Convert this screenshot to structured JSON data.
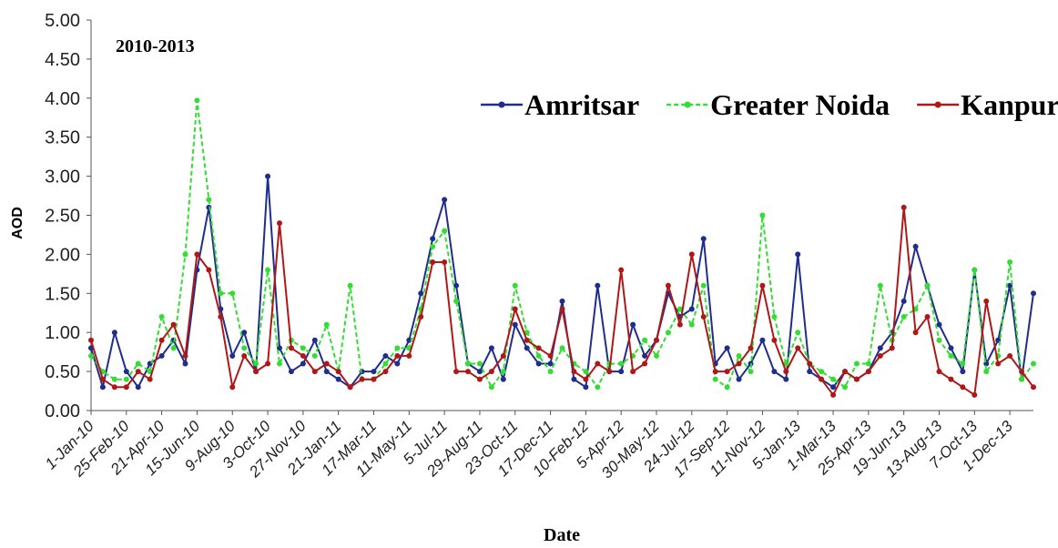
{
  "chart_data": {
    "type": "line",
    "title": "2010-2013",
    "x_label": "Date",
    "y_label": "AOD",
    "categories": [
      "1-Jan-10",
      null,
      null,
      "25-Feb-10",
      null,
      null,
      "21-Apr-10",
      null,
      null,
      "15-Jun-10",
      null,
      null,
      "9-Aug-10",
      null,
      null,
      "3-Oct-10",
      null,
      null,
      "27-Nov-10",
      null,
      null,
      "21-Jan-11",
      null,
      null,
      "17-Mar-11",
      null,
      null,
      "11-May-11",
      null,
      null,
      "5-Jul-11",
      null,
      null,
      "29-Aug-11",
      null,
      null,
      "23-Oct-11",
      null,
      null,
      "17-Dec-11",
      null,
      null,
      "10-Feb-12",
      null,
      null,
      "5-Apr-12",
      null,
      null,
      "30-May-12",
      null,
      null,
      "24-Jul-12",
      null,
      null,
      "17-Sep-12",
      null,
      null,
      "11-Nov-12",
      null,
      null,
      "5-Jan-13",
      null,
      null,
      "1-Mar-13",
      null,
      null,
      "25-Apr-13",
      null,
      null,
      "19-Jun-13",
      null,
      null,
      "13-Aug-13",
      null,
      null,
      "7-Oct-13",
      null,
      null,
      "1-Dec-13",
      null,
      null
    ],
    "series": [
      {
        "name": "Amritsar",
        "color": "#1f2d8c",
        "dashed": false,
        "values": [
          0.8,
          0.3,
          1.0,
          0.5,
          0.3,
          0.6,
          0.7,
          0.9,
          0.6,
          1.8,
          2.6,
          1.3,
          0.7,
          1.0,
          0.5,
          3.0,
          0.8,
          0.5,
          0.6,
          0.9,
          0.5,
          0.4,
          0.3,
          0.5,
          0.5,
          0.7,
          0.6,
          0.9,
          1.5,
          2.2,
          2.7,
          1.6,
          0.6,
          0.5,
          0.8,
          0.4,
          1.1,
          0.8,
          0.6,
          0.6,
          1.4,
          0.4,
          0.3,
          1.6,
          0.5,
          0.5,
          1.1,
          0.7,
          0.9,
          1.5,
          1.2,
          1.3,
          2.2,
          0.6,
          0.8,
          0.4,
          0.6,
          0.9,
          0.5,
          0.4,
          2.0,
          0.5,
          0.4,
          0.3,
          0.5,
          0.4,
          0.5,
          0.8,
          1.0,
          1.4,
          2.1,
          1.6,
          1.1,
          0.8,
          0.5,
          1.8,
          0.6,
          0.9,
          1.6,
          0.4,
          1.5
        ]
      },
      {
        "name": "Greater Noida",
        "color": "#33dd33",
        "dashed": true,
        "values": [
          0.7,
          0.5,
          0.4,
          0.4,
          0.6,
          0.5,
          1.2,
          0.8,
          2.0,
          3.97,
          2.7,
          1.5,
          1.5,
          0.8,
          0.6,
          1.8,
          0.6,
          0.9,
          0.8,
          0.7,
          1.1,
          0.5,
          1.6,
          0.4,
          0.4,
          0.6,
          0.8,
          0.8,
          1.3,
          2.1,
          2.3,
          1.4,
          0.6,
          0.6,
          0.3,
          0.5,
          1.6,
          1.0,
          0.7,
          0.5,
          0.8,
          0.6,
          0.5,
          0.3,
          0.6,
          0.6,
          0.7,
          0.9,
          0.7,
          1.0,
          1.3,
          1.1,
          1.6,
          0.4,
          0.3,
          0.7,
          0.5,
          2.5,
          1.2,
          0.6,
          1.0,
          0.6,
          0.5,
          0.4,
          0.3,
          0.6,
          0.6,
          1.6,
          0.9,
          1.2,
          1.3,
          1.6,
          0.9,
          0.7,
          0.6,
          1.8,
          0.5,
          0.7,
          1.9,
          0.4,
          0.6
        ]
      },
      {
        "name": "Kanpur",
        "color": "#b01818",
        "dashed": false,
        "values": [
          0.9,
          0.4,
          0.3,
          0.3,
          0.5,
          0.4,
          0.9,
          1.1,
          0.7,
          2.0,
          1.8,
          1.2,
          0.3,
          0.7,
          0.5,
          0.6,
          2.4,
          0.8,
          0.7,
          0.5,
          0.6,
          0.5,
          0.3,
          0.4,
          0.4,
          0.5,
          0.7,
          0.7,
          1.2,
          1.9,
          1.9,
          0.5,
          0.5,
          0.4,
          0.5,
          0.7,
          1.3,
          0.9,
          0.8,
          0.7,
          1.3,
          0.5,
          0.4,
          0.6,
          0.5,
          1.8,
          0.5,
          0.6,
          0.9,
          1.6,
          1.1,
          2.0,
          1.2,
          0.5,
          0.5,
          0.6,
          0.8,
          1.6,
          0.9,
          0.5,
          0.8,
          0.6,
          0.4,
          0.2,
          0.5,
          0.4,
          0.5,
          0.7,
          0.8,
          2.6,
          1.0,
          1.2,
          0.5,
          0.4,
          0.3,
          0.2,
          1.4,
          0.6,
          0.7,
          0.5,
          0.3
        ]
      }
    ],
    "ylim": [
      0,
      5
    ],
    "yticks": [
      {
        "value": 0,
        "label": "0.00"
      },
      {
        "value": 0.5,
        "label": "0.50"
      },
      {
        "value": 1,
        "label": "1.00"
      },
      {
        "value": 1.5,
        "label": "1.50"
      },
      {
        "value": 2,
        "label": "2.00"
      },
      {
        "value": 2.5,
        "label": "2.50"
      },
      {
        "value": 3,
        "label": "3.00"
      },
      {
        "value": 3.5,
        "label": "3.50"
      },
      {
        "value": 4,
        "label": "4.00"
      },
      {
        "value": 4.5,
        "label": "4.50"
      },
      {
        "value": 5,
        "label": "5.00"
      }
    ],
    "grid": false,
    "legend": "top-right"
  }
}
